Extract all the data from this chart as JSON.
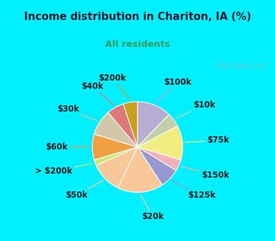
{
  "title": "Income distribution in Chariton, IA (%)",
  "subtitle": "All residents",
  "labels": [
    "$100k",
    "$10k",
    "$75k",
    "$150k",
    "$125k",
    "$20k",
    "$50k",
    "> $200k",
    "$60k",
    "$30k",
    "$40k",
    "$200k"
  ],
  "values": [
    12,
    5,
    12,
    4,
    7,
    16,
    11,
    2,
    9,
    9,
    6,
    5
  ],
  "colors": [
    "#b8aed4",
    "#c0d0a8",
    "#f0ee80",
    "#f0b0bc",
    "#9898d0",
    "#f8c898",
    "#f8c898",
    "#c8e878",
    "#f0a040",
    "#d0c8a8",
    "#e07878",
    "#c8a020"
  ],
  "bg_chart": "#e8f5ee",
  "bg_top": "#00f0ff",
  "title_color": "#1a1a2e",
  "subtitle_color": "#3a9a5c",
  "watermark": "City-Data.com",
  "startangle": 90,
  "label_fontsize": 8.5
}
